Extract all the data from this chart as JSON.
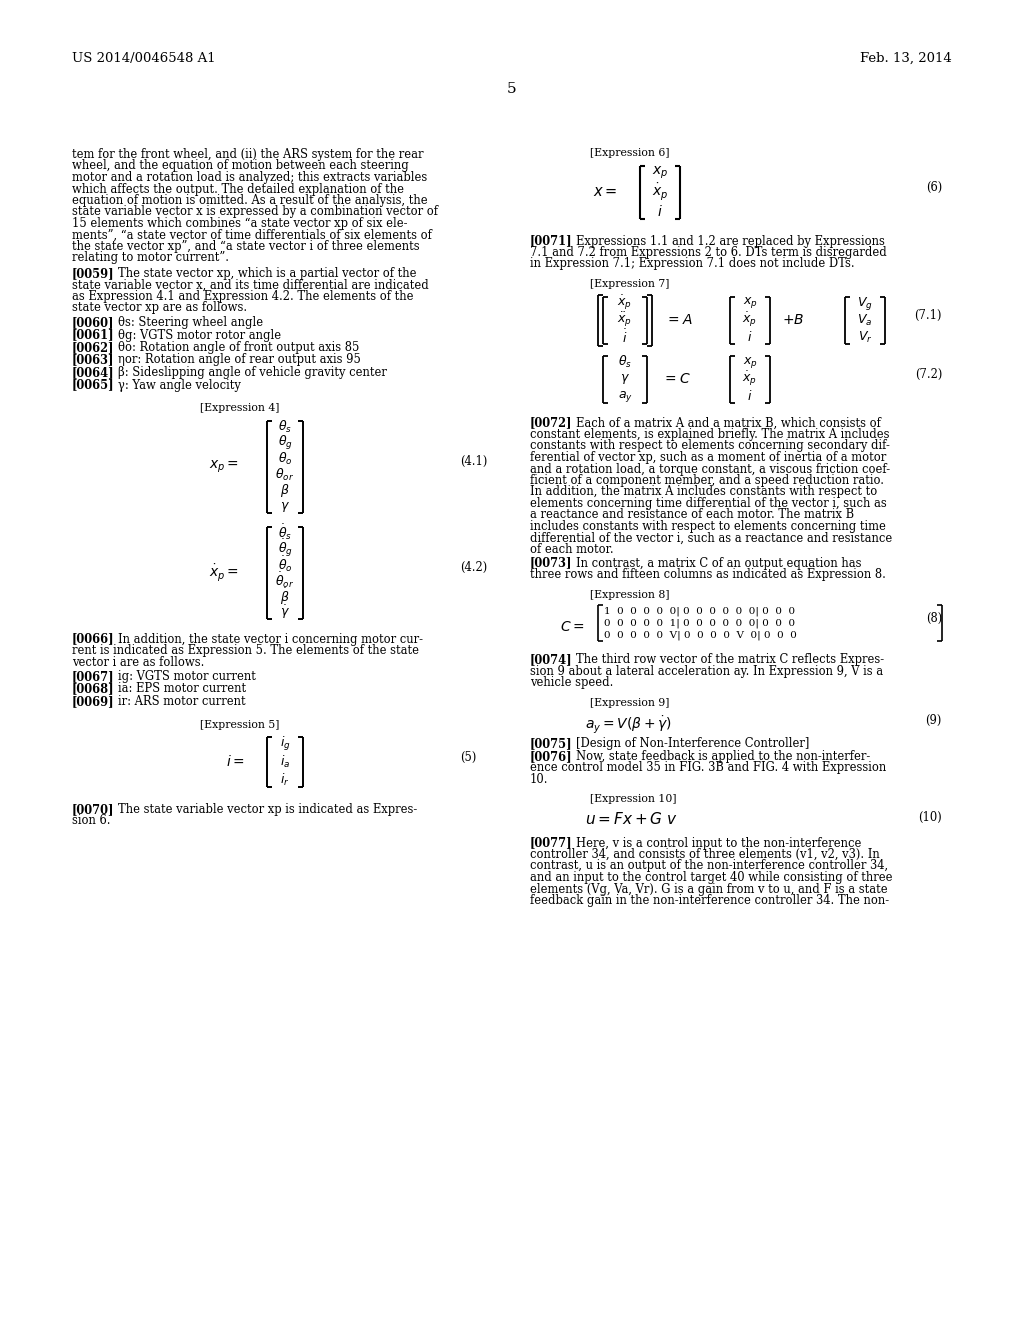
{
  "header_left": "US 2014/0046548 A1",
  "header_right": "Feb. 13, 2014",
  "page_number": "5",
  "bg_color": "#ffffff",
  "text_color": "#000000"
}
